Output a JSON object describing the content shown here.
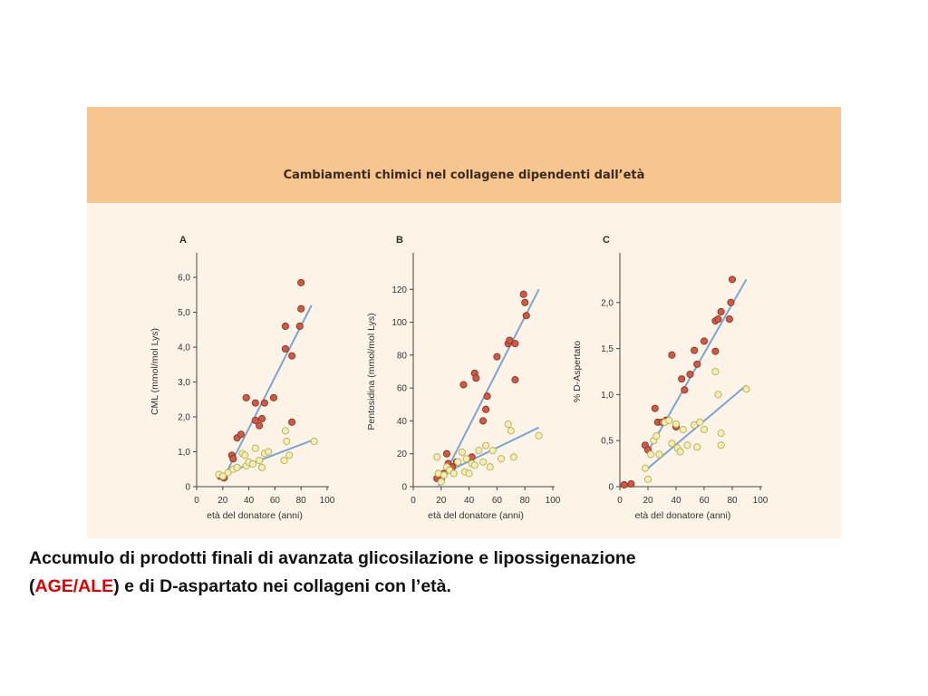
{
  "figure": {
    "title": "Cambiamenti chimici nel collagene dipendenti dall’età",
    "colors": {
      "banner": "#f7c58f",
      "panel": "#fdf3e7",
      "red_point": "#cd5a45",
      "yellow_point": "#f3efb4",
      "line": "#7aa5d4"
    }
  },
  "caption": {
    "line1": "Accumulo di prodotti finali di avanzata glicosilazione e lipossigenazione",
    "paren_open": "(",
    "highlight": "AGE/ALE",
    "line2_rest": ") e di D-aspartato nei collageni con l’età.",
    "highlight_color": "#e00000"
  },
  "chart_data": [
    {
      "panel": "A",
      "type": "scatter",
      "xlabel": "età del donatore (anni)",
      "ylabel": "CML (mmol/mol Lys)",
      "xlim": [
        0,
        100
      ],
      "ylim": [
        0,
        6.6
      ],
      "xticks": [
        "0",
        "20",
        "40",
        "60",
        "80",
        "100"
      ],
      "yticks": [
        "0",
        "1,0",
        "2,0",
        "3,0",
        "4,0",
        "5,0",
        "6,0"
      ],
      "grid": false,
      "series": [
        {
          "color": "red",
          "points": [
            [
              18,
              0.3
            ],
            [
              21,
              0.25
            ],
            [
              27,
              0.9
            ],
            [
              28,
              0.8
            ],
            [
              31,
              1.4
            ],
            [
              34,
              1.5
            ],
            [
              38,
              2.55
            ],
            [
              45,
              1.9
            ],
            [
              45,
              2.4
            ],
            [
              48,
              1.75
            ],
            [
              50,
              1.95
            ],
            [
              52,
              2.4
            ],
            [
              59,
              2.55
            ],
            [
              68,
              4.6
            ],
            [
              68,
              3.95
            ],
            [
              73,
              3.75
            ],
            [
              73,
              1.85
            ],
            [
              79,
              4.6
            ],
            [
              80,
              5.1
            ],
            [
              80,
              5.85
            ]
          ]
        },
        {
          "color": "yellow",
          "points": [
            [
              17,
              0.35
            ],
            [
              20,
              0.3
            ],
            [
              24,
              0.4
            ],
            [
              28,
              0.5
            ],
            [
              31,
              0.55
            ],
            [
              35,
              0.95
            ],
            [
              37,
              0.9
            ],
            [
              38,
              0.6
            ],
            [
              40,
              0.7
            ],
            [
              43,
              0.65
            ],
            [
              45,
              1.1
            ],
            [
              48,
              0.75
            ],
            [
              50,
              0.55
            ],
            [
              52,
              0.95
            ],
            [
              55,
              1.0
            ],
            [
              67,
              0.75
            ],
            [
              68,
              1.6
            ],
            [
              69,
              1.3
            ],
            [
              71,
              0.9
            ],
            [
              90,
              1.3
            ]
          ]
        }
      ],
      "fits": [
        {
          "series": "red",
          "from": [
            20,
            0.2
          ],
          "to": [
            88,
            5.2
          ]
        },
        {
          "series": "yellow",
          "from": [
            20,
            0.35
          ],
          "to": [
            90,
            1.35
          ]
        }
      ]
    },
    {
      "panel": "B",
      "type": "scatter",
      "xlabel": "età del donatore (anni)",
      "ylabel": "Pentosidina (mmol/mol Lys)",
      "xlim": [
        0,
        100
      ],
      "ylim": [
        0,
        140
      ],
      "xticks": [
        "0",
        "20",
        "40",
        "60",
        "80",
        "100"
      ],
      "yticks": [
        "0",
        "20",
        "40",
        "60",
        "80",
        "100",
        "120"
      ],
      "grid": false,
      "series": [
        {
          "color": "red",
          "points": [
            [
              17,
              5
            ],
            [
              20,
              4
            ],
            [
              22,
              8
            ],
            [
              24,
              20
            ],
            [
              25,
              14
            ],
            [
              28,
              12
            ],
            [
              31,
              15
            ],
            [
              36,
              62
            ],
            [
              42,
              18
            ],
            [
              44,
              69
            ],
            [
              45,
              66
            ],
            [
              50,
              40
            ],
            [
              52,
              47
            ],
            [
              53,
              55
            ],
            [
              60,
              79
            ],
            [
              68,
              87
            ],
            [
              69,
              89
            ],
            [
              73,
              87
            ],
            [
              73,
              65
            ],
            [
              79,
              117
            ],
            [
              80,
              112
            ],
            [
              81,
              104
            ]
          ]
        },
        {
          "color": "yellow",
          "points": [
            [
              17,
              18
            ],
            [
              18,
              8
            ],
            [
              20,
              3
            ],
            [
              22,
              7
            ],
            [
              24,
              12
            ],
            [
              26,
              10
            ],
            [
              29,
              8
            ],
            [
              32,
              15
            ],
            [
              35,
              21
            ],
            [
              37,
              9
            ],
            [
              38,
              17
            ],
            [
              40,
              8
            ],
            [
              42,
              14
            ],
            [
              44,
              13
            ],
            [
              47,
              22
            ],
            [
              50,
              15
            ],
            [
              52,
              25
            ],
            [
              55,
              12
            ],
            [
              57,
              22
            ],
            [
              63,
              17
            ],
            [
              68,
              38
            ],
            [
              70,
              34
            ],
            [
              72,
              18
            ],
            [
              90,
              31
            ]
          ]
        }
      ],
      "fits": [
        {
          "series": "red",
          "from": [
            18,
            0
          ],
          "to": [
            90,
            120
          ]
        },
        {
          "series": "yellow",
          "from": [
            17,
            6
          ],
          "to": [
            90,
            36
          ]
        }
      ]
    },
    {
      "panel": "C",
      "type": "scatter",
      "xlabel": "età del donatore (anni)",
      "ylabel": "% D-Aspertato",
      "xlim": [
        0,
        100
      ],
      "ylim": [
        0,
        2.5
      ],
      "xticks": [
        "0",
        "20",
        "40",
        "60",
        "80",
        "100"
      ],
      "yticks": [
        "0",
        "0,5",
        "1,0",
        "1,5",
        "2,0"
      ],
      "grid": false,
      "series": [
        {
          "color": "red",
          "points": [
            [
              3,
              0.02
            ],
            [
              8,
              0.03
            ],
            [
              18,
              0.45
            ],
            [
              20,
              0.4
            ],
            [
              25,
              0.85
            ],
            [
              27,
              0.7
            ],
            [
              30,
              0.7
            ],
            [
              33,
              0.72
            ],
            [
              37,
              1.43
            ],
            [
              40,
              0.65
            ],
            [
              44,
              1.17
            ],
            [
              46,
              1.05
            ],
            [
              50,
              1.22
            ],
            [
              53,
              1.48
            ],
            [
              55,
              1.33
            ],
            [
              60,
              1.58
            ],
            [
              68,
              1.8
            ],
            [
              68,
              1.47
            ],
            [
              70,
              1.82
            ],
            [
              72,
              1.9
            ],
            [
              78,
              1.82
            ],
            [
              79,
              2.0
            ],
            [
              80,
              2.25
            ]
          ]
        },
        {
          "color": "yellow",
          "points": [
            [
              18,
              0.2
            ],
            [
              20,
              0.08
            ],
            [
              22,
              0.35
            ],
            [
              24,
              0.5
            ],
            [
              26,
              0.55
            ],
            [
              28,
              0.35
            ],
            [
              32,
              0.7
            ],
            [
              35,
              0.72
            ],
            [
              37,
              0.47
            ],
            [
              40,
              0.68
            ],
            [
              41,
              0.42
            ],
            [
              43,
              0.38
            ],
            [
              45,
              0.62
            ],
            [
              48,
              0.45
            ],
            [
              53,
              0.67
            ],
            [
              55,
              0.43
            ],
            [
              57,
              0.7
            ],
            [
              60,
              0.62
            ],
            [
              68,
              1.25
            ],
            [
              70,
              1.0
            ],
            [
              72,
              0.58
            ],
            [
              72,
              0.45
            ],
            [
              90,
              1.06
            ]
          ]
        }
      ],
      "fits": [
        {
          "series": "red",
          "from": [
            20,
            0.38
          ],
          "to": [
            90,
            2.25
          ]
        },
        {
          "series": "yellow",
          "from": [
            20,
            0.2
          ],
          "to": [
            90,
            1.1
          ]
        }
      ]
    }
  ]
}
